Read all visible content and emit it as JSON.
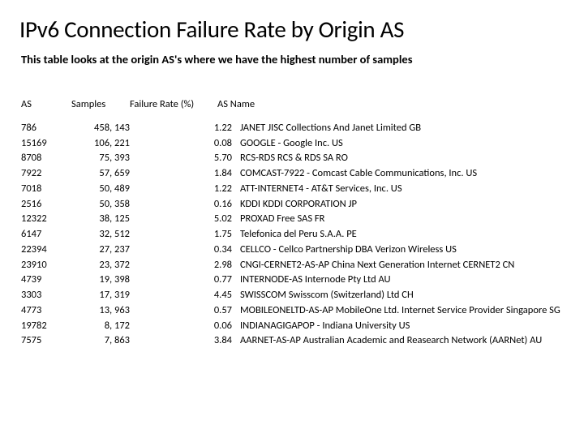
{
  "title": "IPv6 Connection Failure Rate by Origin AS",
  "subtitle": "This table looks at the origin AS's where we have the highest number of samples",
  "columns": {
    "as": "AS",
    "samples": "Samples",
    "rate": "Failure Rate (%)",
    "name": "AS Name"
  },
  "rows": [
    {
      "as": "786",
      "samples": "458, 143",
      "rate": "1.22",
      "name": "JANET JISC Collections And Janet Limited GB"
    },
    {
      "as": "15169",
      "samples": "106, 221",
      "rate": "0.08",
      "name": "GOOGLE - Google Inc. US"
    },
    {
      "as": "8708",
      "samples": "75, 393",
      "rate": "5.70",
      "name": "RCS-RDS RCS & RDS SA RO"
    },
    {
      "as": "7922",
      "samples": "57, 659",
      "rate": "1.84",
      "name": "COMCAST-7922 - Comcast Cable Communications, Inc. US"
    },
    {
      "as": "7018",
      "samples": "50, 489",
      "rate": "1.22",
      "name": "ATT-INTERNET4 - AT&T Services, Inc. US"
    },
    {
      "as": "2516",
      "samples": "50, 358",
      "rate": "0.16",
      "name": "KDDI KDDI CORPORATION JP"
    },
    {
      "as": "12322",
      "samples": "38, 125",
      "rate": "5.02",
      "name": "PROXAD Free SAS FR"
    },
    {
      "as": "6147",
      "samples": "32, 512",
      "rate": "1.75",
      "name": "Telefonica del Peru S.A.A. PE"
    },
    {
      "as": "22394",
      "samples": "27, 237",
      "rate": "0.34",
      "name": "CELLCO - Cellco Partnership DBA Verizon Wireless US"
    },
    {
      "as": "23910",
      "samples": "23, 372",
      "rate": "2.98",
      "name": "CNGI-CERNET2-AS-AP China Next Generation Internet CERNET2 CN"
    },
    {
      "as": "4739",
      "samples": "19, 398",
      "rate": "0.77",
      "name": "INTERNODE-AS Internode Pty Ltd AU"
    },
    {
      "as": "3303",
      "samples": "17, 319",
      "rate": "4.45",
      "name": "SWISSCOM Swisscom (Switzerland) Ltd CH"
    },
    {
      "as": "4773",
      "samples": "13, 963",
      "rate": "0.57",
      "name": "MOBILEONELTD-AS-AP MobileOne Ltd. Internet Service Provider Singapore SG"
    },
    {
      "as": "19782",
      "samples": "8, 172",
      "rate": "0.06",
      "name": "INDIANAGIGAPOP - Indiana University US"
    },
    {
      "as": "7575",
      "samples": "7, 863",
      "rate": "3.84",
      "name": "AARNET-AS-AP Australian Academic and Reasearch Network (AARNet) AU"
    }
  ]
}
